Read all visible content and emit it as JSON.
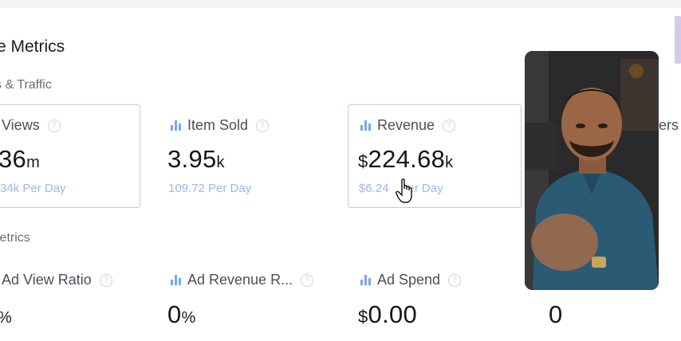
{
  "title": "e Metrics",
  "sections": {
    "traffic": "s & Traffic",
    "ad_metrics": "letrics"
  },
  "row1": {
    "views": {
      "label": "Views",
      "value": "36",
      "unit": "m",
      "sub": "34k Per Day"
    },
    "item_sold": {
      "label": "Item Sold",
      "value": "3.95",
      "unit": "k",
      "sub": "109.72 Per Day"
    },
    "revenue": {
      "label": "Revenue",
      "currency": "$",
      "value": "224.68",
      "unit": "k",
      "sub_prefix": "$6.24",
      "sub_suffix": "er Day"
    },
    "right_partial": {
      "label": "ers"
    }
  },
  "row2": {
    "ad_view_ratio": {
      "label": "Ad View Ratio",
      "value": "%"
    },
    "ad_revenue_rate": {
      "label": "Ad Revenue R...",
      "value": "0",
      "unit": "%"
    },
    "ad_spend": {
      "label": "Ad Spend",
      "currency": "$",
      "value": "0.00"
    },
    "fourth": {
      "value": "0"
    }
  },
  "colors": {
    "accent_border": "#b9cdf0",
    "bar_icon": "#7fa6e6",
    "sub_text": "#9fb6e6"
  },
  "icons": [
    "bar-chart-icon",
    "help-circle-icon",
    "mouse-pointer-hand-icon"
  ]
}
